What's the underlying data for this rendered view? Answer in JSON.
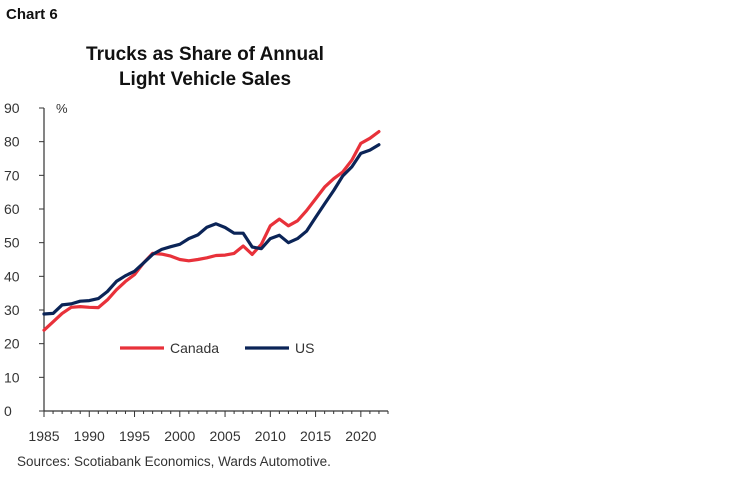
{
  "header": {
    "chart_number": "Chart 6"
  },
  "source": "Sources: Scotiabank Economics, Wards Automotive.",
  "colors": {
    "canada": "#e8313a",
    "us": "#0b2457",
    "axis": "#333333"
  },
  "chart_data": {
    "type": "line",
    "title": [
      "Trucks as Share of Annual",
      "Light Vehicle Sales"
    ],
    "ylabel": "%",
    "xlabel": "",
    "xlim": [
      1985,
      2023
    ],
    "ylim": [
      0,
      90
    ],
    "x_ticks": [
      1985,
      1990,
      1995,
      2000,
      2005,
      2010,
      2015,
      2020
    ],
    "y_ticks": [
      0,
      10,
      20,
      30,
      40,
      50,
      60,
      70,
      80,
      90
    ],
    "grid": false,
    "legend_position": "lower-center",
    "x": [
      1985,
      1986,
      1987,
      1988,
      1989,
      1990,
      1991,
      1992,
      1993,
      1994,
      1995,
      1996,
      1997,
      1998,
      1999,
      2000,
      2001,
      2002,
      2003,
      2004,
      2005,
      2006,
      2007,
      2008,
      2009,
      2010,
      2011,
      2012,
      2013,
      2014,
      2015,
      2016,
      2017,
      2018,
      2019,
      2020,
      2021,
      2022
    ],
    "series": [
      {
        "name": "Canada",
        "color": "#e8313a",
        "values": [
          24,
          26.5,
          29,
          30.8,
          31,
          30.8,
          30.7,
          33,
          36,
          38.5,
          40.5,
          44,
          46.8,
          46.6,
          46,
          45,
          44.6,
          45,
          45.5,
          46.2,
          46.3,
          46.8,
          49,
          46.5,
          49.5,
          55,
          57,
          55,
          56.5,
          59.5,
          63,
          66.5,
          69,
          71,
          74.5,
          79.5,
          81,
          83
        ]
      },
      {
        "name": "US",
        "color": "#0b2457",
        "values": [
          28.8,
          29,
          31.5,
          31.8,
          32.6,
          32.8,
          33.4,
          35.5,
          38.5,
          40.2,
          41.5,
          44,
          46.5,
          48,
          48.8,
          49.5,
          51.2,
          52.3,
          54.6,
          55.6,
          54.5,
          52.8,
          52.8,
          48.7,
          48.2,
          51.2,
          52.2,
          50,
          51.2,
          53.4,
          57.5,
          61.5,
          65.5,
          69.8,
          72.5,
          76.5,
          77.5,
          79.1
        ]
      }
    ]
  }
}
